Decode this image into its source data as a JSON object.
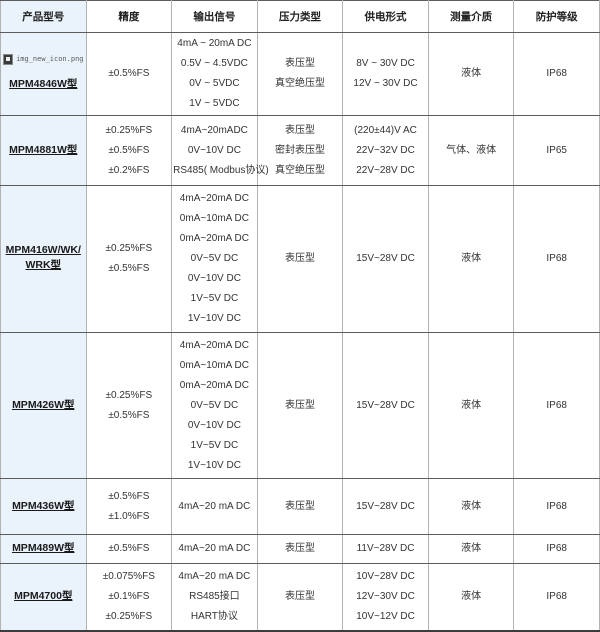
{
  "colors": {
    "first_column_bg": "#eaf3fb",
    "row_border": "#5c5c5c",
    "column_border": "#b3b3b3",
    "text": "#333333"
  },
  "header": {
    "columns": [
      "产品型号",
      "精度",
      "输出信号",
      "压力类型",
      "供电形式",
      "测量介质",
      "防护等级"
    ]
  },
  "rows": [
    {
      "model": "MPM4846W型",
      "image_alt": "img_new_icon.png",
      "accuracy": [
        "±0.5%FS"
      ],
      "output": [
        "4mA ~ 20mA DC",
        "0.5V ~ 4.5VDC",
        "0V ~ 5VDC",
        "1V ~ 5VDC"
      ],
      "pressure": [
        "表压型",
        "真空绝压型"
      ],
      "power": [
        "8V ~ 30V DC",
        "12V ~ 30V DC"
      ],
      "medium": "液体",
      "protection": "IP68"
    },
    {
      "model": "MPM4881W型",
      "accuracy": [
        "±0.25%FS",
        "±0.5%FS",
        "±0.2%FS"
      ],
      "output": [
        "4mA~20mADC",
        "0V~10V DC",
        "RS485( Modbus协议)"
      ],
      "pressure": [
        "表压型",
        "密封表压型",
        "真空绝压型"
      ],
      "power": [
        "(220±44)V AC",
        "22V~32V DC",
        "22V~28V DC"
      ],
      "medium": "气体、液体",
      "protection": "IP65"
    },
    {
      "model": "MPM416W/WK/WRK型",
      "accuracy": [
        "±0.25%FS",
        "±0.5%FS"
      ],
      "output": [
        "4mA~20mA DC",
        "0mA~10mA DC",
        "0mA~20mA DC",
        "0V~5V DC",
        "0V~10V DC",
        "1V~5V DC",
        "1V~10V DC"
      ],
      "pressure": [
        "表压型"
      ],
      "power": [
        "15V~28V DC"
      ],
      "medium": "液体",
      "protection": "IP68"
    },
    {
      "model": "MPM426W型",
      "accuracy": [
        "±0.25%FS",
        "±0.5%FS"
      ],
      "output": [
        "4mA~20mA DC",
        "0mA~10mA DC",
        "0mA~20mA DC",
        "0V~5V DC",
        "0V~10V DC",
        "1V~5V DC",
        "1V~10V DC"
      ],
      "pressure": [
        "表压型"
      ],
      "power": [
        "15V~28V DC"
      ],
      "medium": "液体",
      "protection": "IP68"
    },
    {
      "model": "MPM436W型",
      "accuracy": [
        "±0.5%FS",
        "±1.0%FS"
      ],
      "output": [
        "4mA~20 mA DC"
      ],
      "pressure": [
        "表压型"
      ],
      "power": [
        "15V~28V DC"
      ],
      "medium": "液体",
      "protection": "IP68"
    },
    {
      "model": "MPM489W型",
      "accuracy": [
        "±0.5%FS"
      ],
      "output": [
        "4mA~20 mA DC"
      ],
      "pressure": [
        "表压型"
      ],
      "power": [
        "11V~28V DC"
      ],
      "medium": "液体",
      "protection": "IP68"
    },
    {
      "model": "MPM4700型",
      "accuracy": [
        "±0.075%FS",
        "±0.1%FS",
        "±0.25%FS"
      ],
      "output": [
        "4mA~20 mA DC",
        "RS485接口",
        "HART协议"
      ],
      "pressure": [
        "表压型"
      ],
      "power": [
        "10V~28V DC",
        "12V~30V DC",
        "10V~12V DC"
      ],
      "medium": "液体",
      "protection": "IP68"
    }
  ]
}
